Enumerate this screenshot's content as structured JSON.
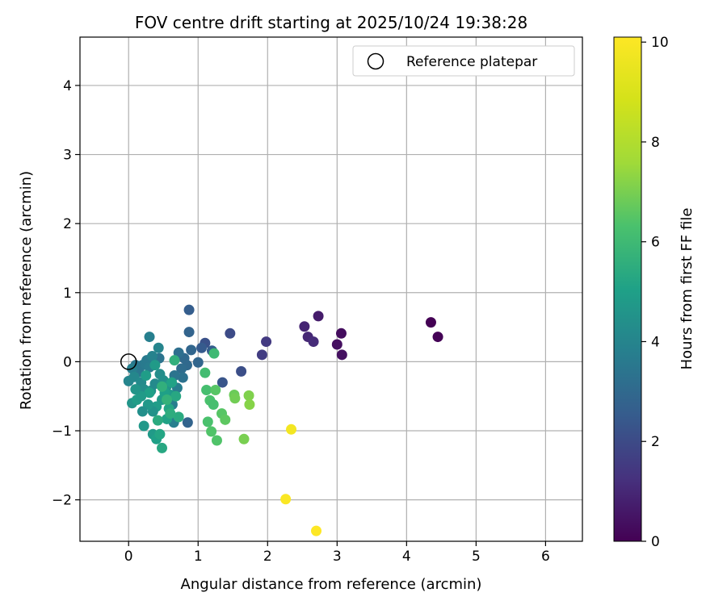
{
  "chart_data": {
    "type": "scatter",
    "title": "FOV centre drift starting at 2025/10/24 19:38:28",
    "xlabel": "Angular distance from reference (arcmin)",
    "ylabel": "Rotation from reference (arcmin)",
    "xlim": [
      -0.7,
      6.53
    ],
    "ylim": [
      -2.6,
      4.7
    ],
    "xticks": [
      0,
      1,
      2,
      3,
      4,
      5,
      6
    ],
    "yticks": [
      -2,
      -1,
      0,
      1,
      2,
      3,
      4
    ],
    "grid": true,
    "legend": {
      "position": "top-right",
      "entries": [
        "Reference platepar"
      ]
    },
    "reference_point": {
      "x": 0,
      "y": 0
    },
    "colorbar": {
      "label": "Hours from first FF file",
      "colormap": "viridis",
      "range": [
        0,
        10.1
      ],
      "ticks": [
        0,
        2,
        4,
        6,
        8,
        10
      ]
    },
    "points": [
      {
        "x": 4.35,
        "y": 0.57,
        "c": 0.0
      },
      {
        "x": 4.45,
        "y": 0.36,
        "c": 0.05
      },
      {
        "x": 3.06,
        "y": 0.41,
        "c": 0.3
      },
      {
        "x": 3.0,
        "y": 0.25,
        "c": 0.35
      },
      {
        "x": 3.07,
        "y": 0.1,
        "c": 0.4
      },
      {
        "x": 2.73,
        "y": 0.66,
        "c": 0.7
      },
      {
        "x": 2.53,
        "y": 0.51,
        "c": 0.9
      },
      {
        "x": 2.58,
        "y": 0.36,
        "c": 1.0
      },
      {
        "x": 2.66,
        "y": 0.29,
        "c": 1.1
      },
      {
        "x": 1.98,
        "y": 0.29,
        "c": 1.5
      },
      {
        "x": 1.92,
        "y": 0.1,
        "c": 1.6
      },
      {
        "x": 1.46,
        "y": 0.41,
        "c": 2.0
      },
      {
        "x": 1.62,
        "y": -0.14,
        "c": 2.1
      },
      {
        "x": 1.35,
        "y": -0.3,
        "c": 2.3
      },
      {
        "x": 1.1,
        "y": 0.27,
        "c": 2.2
      },
      {
        "x": 1.05,
        "y": 0.2,
        "c": 2.5
      },
      {
        "x": 1.2,
        "y": 0.16,
        "c": 2.6
      },
      {
        "x": 0.87,
        "y": 0.75,
        "c": 2.6
      },
      {
        "x": 0.87,
        "y": 0.43,
        "c": 2.8
      },
      {
        "x": 0.9,
        "y": 0.17,
        "c": 2.9
      },
      {
        "x": 1.0,
        "y": -0.01,
        "c": 2.9
      },
      {
        "x": 0.85,
        "y": -0.88,
        "c": 2.8
      },
      {
        "x": 0.8,
        "y": 0.05,
        "c": 3.0
      },
      {
        "x": 0.84,
        "y": -0.05,
        "c": 3.0
      },
      {
        "x": 0.76,
        "y": -0.1,
        "c": 3.1
      },
      {
        "x": 0.72,
        "y": 0.13,
        "c": 3.2
      },
      {
        "x": 0.78,
        "y": -0.23,
        "c": 3.3
      },
      {
        "x": 0.66,
        "y": -0.2,
        "c": 3.4
      },
      {
        "x": 0.44,
        "y": 0.05,
        "c": 3.4
      },
      {
        "x": 0.3,
        "y": 0.36,
        "c": 3.8
      },
      {
        "x": 0.43,
        "y": 0.2,
        "c": 4.0
      },
      {
        "x": 0.65,
        "y": -0.88,
        "c": 3.8
      },
      {
        "x": 0.63,
        "y": -0.62,
        "c": 3.7
      },
      {
        "x": 0.7,
        "y": -0.38,
        "c": 3.7
      },
      {
        "x": 0.2,
        "y": -0.05,
        "c": 3.6
      },
      {
        "x": 0.26,
        "y": 0.02,
        "c": 3.6
      },
      {
        "x": 0.3,
        "y": -0.08,
        "c": 3.7
      },
      {
        "x": 0.34,
        "y": 0.08,
        "c": 3.9
      },
      {
        "x": 0.15,
        "y": -0.15,
        "c": 3.5
      },
      {
        "x": 0.1,
        "y": -0.05,
        "c": 3.5
      },
      {
        "x": 0.05,
        "y": -0.1,
        "c": 3.8
      },
      {
        "x": 0.0,
        "y": -0.28,
        "c": 4.0
      },
      {
        "x": 0.08,
        "y": -0.22,
        "c": 4.1
      },
      {
        "x": 0.18,
        "y": -0.3,
        "c": 4.2
      },
      {
        "x": 0.22,
        "y": -0.4,
        "c": 4.3
      },
      {
        "x": 0.32,
        "y": -0.42,
        "c": 4.4
      },
      {
        "x": 0.38,
        "y": -0.32,
        "c": 4.2
      },
      {
        "x": 0.45,
        "y": -0.18,
        "c": 4.3
      },
      {
        "x": 0.5,
        "y": -0.27,
        "c": 4.4
      },
      {
        "x": 0.55,
        "y": -0.35,
        "c": 4.6
      },
      {
        "x": 0.6,
        "y": -0.48,
        "c": 4.7
      },
      {
        "x": 0.48,
        "y": -0.55,
        "c": 4.8
      },
      {
        "x": 0.4,
        "y": -0.65,
        "c": 4.9
      },
      {
        "x": 0.35,
        "y": -0.72,
        "c": 4.5
      },
      {
        "x": 0.28,
        "y": -0.62,
        "c": 4.7
      },
      {
        "x": 0.2,
        "y": -0.72,
        "c": 4.4
      },
      {
        "x": 0.05,
        "y": -0.6,
        "c": 4.6
      },
      {
        "x": 0.12,
        "y": -0.55,
        "c": 4.9
      },
      {
        "x": 0.22,
        "y": -0.93,
        "c": 4.7
      },
      {
        "x": 0.35,
        "y": -1.05,
        "c": 4.8
      },
      {
        "x": 0.4,
        "y": -1.12,
        "c": 5.0
      },
      {
        "x": 0.45,
        "y": -1.05,
        "c": 5.2
      },
      {
        "x": 0.48,
        "y": -1.25,
        "c": 5.3
      },
      {
        "x": 0.55,
        "y": -0.83,
        "c": 5.1
      },
      {
        "x": 0.58,
        "y": -0.68,
        "c": 5.2
      },
      {
        "x": 0.52,
        "y": -0.45,
        "c": 5.0
      },
      {
        "x": 0.62,
        "y": -0.3,
        "c": 5.1
      },
      {
        "x": 0.68,
        "y": -0.5,
        "c": 5.3
      },
      {
        "x": 0.72,
        "y": -0.8,
        "c": 5.4
      },
      {
        "x": 0.6,
        "y": -0.75,
        "c": 5.5
      },
      {
        "x": 0.42,
        "y": -0.85,
        "c": 5.4
      },
      {
        "x": 0.3,
        "y": -0.45,
        "c": 5.0
      },
      {
        "x": 0.25,
        "y": -0.2,
        "c": 4.9
      },
      {
        "x": 0.38,
        "y": -0.05,
        "c": 4.8
      },
      {
        "x": 0.66,
        "y": 0.02,
        "c": 5.6
      },
      {
        "x": 0.48,
        "y": -0.36,
        "c": 5.6
      },
      {
        "x": 0.55,
        "y": -0.55,
        "c": 5.7
      },
      {
        "x": 0.18,
        "y": -0.5,
        "c": 4.8
      },
      {
        "x": 0.1,
        "y": -0.4,
        "c": 4.6
      },
      {
        "x": 1.23,
        "y": 0.12,
        "c": 6.0
      },
      {
        "x": 1.1,
        "y": -0.16,
        "c": 6.1
      },
      {
        "x": 1.12,
        "y": -0.41,
        "c": 6.2
      },
      {
        "x": 1.17,
        "y": -0.56,
        "c": 6.3
      },
      {
        "x": 1.22,
        "y": -0.62,
        "c": 6.2
      },
      {
        "x": 1.14,
        "y": -0.87,
        "c": 6.3
      },
      {
        "x": 1.19,
        "y": -1.01,
        "c": 6.4
      },
      {
        "x": 1.27,
        "y": -1.14,
        "c": 6.4
      },
      {
        "x": 1.25,
        "y": -0.41,
        "c": 6.5
      },
      {
        "x": 1.34,
        "y": -0.75,
        "c": 6.5
      },
      {
        "x": 1.39,
        "y": -0.84,
        "c": 6.6
      },
      {
        "x": 1.52,
        "y": -0.48,
        "c": 6.8
      },
      {
        "x": 1.53,
        "y": -0.53,
        "c": 6.9
      },
      {
        "x": 1.66,
        "y": -1.12,
        "c": 7.0
      },
      {
        "x": 1.73,
        "y": -0.49,
        "c": 7.1
      },
      {
        "x": 1.74,
        "y": -0.62,
        "c": 7.2
      },
      {
        "x": 2.34,
        "y": -0.98,
        "c": 9.8
      },
      {
        "x": 2.26,
        "y": -1.99,
        "c": 10.0
      },
      {
        "x": 2.7,
        "y": -2.45,
        "c": 10.1
      }
    ]
  }
}
